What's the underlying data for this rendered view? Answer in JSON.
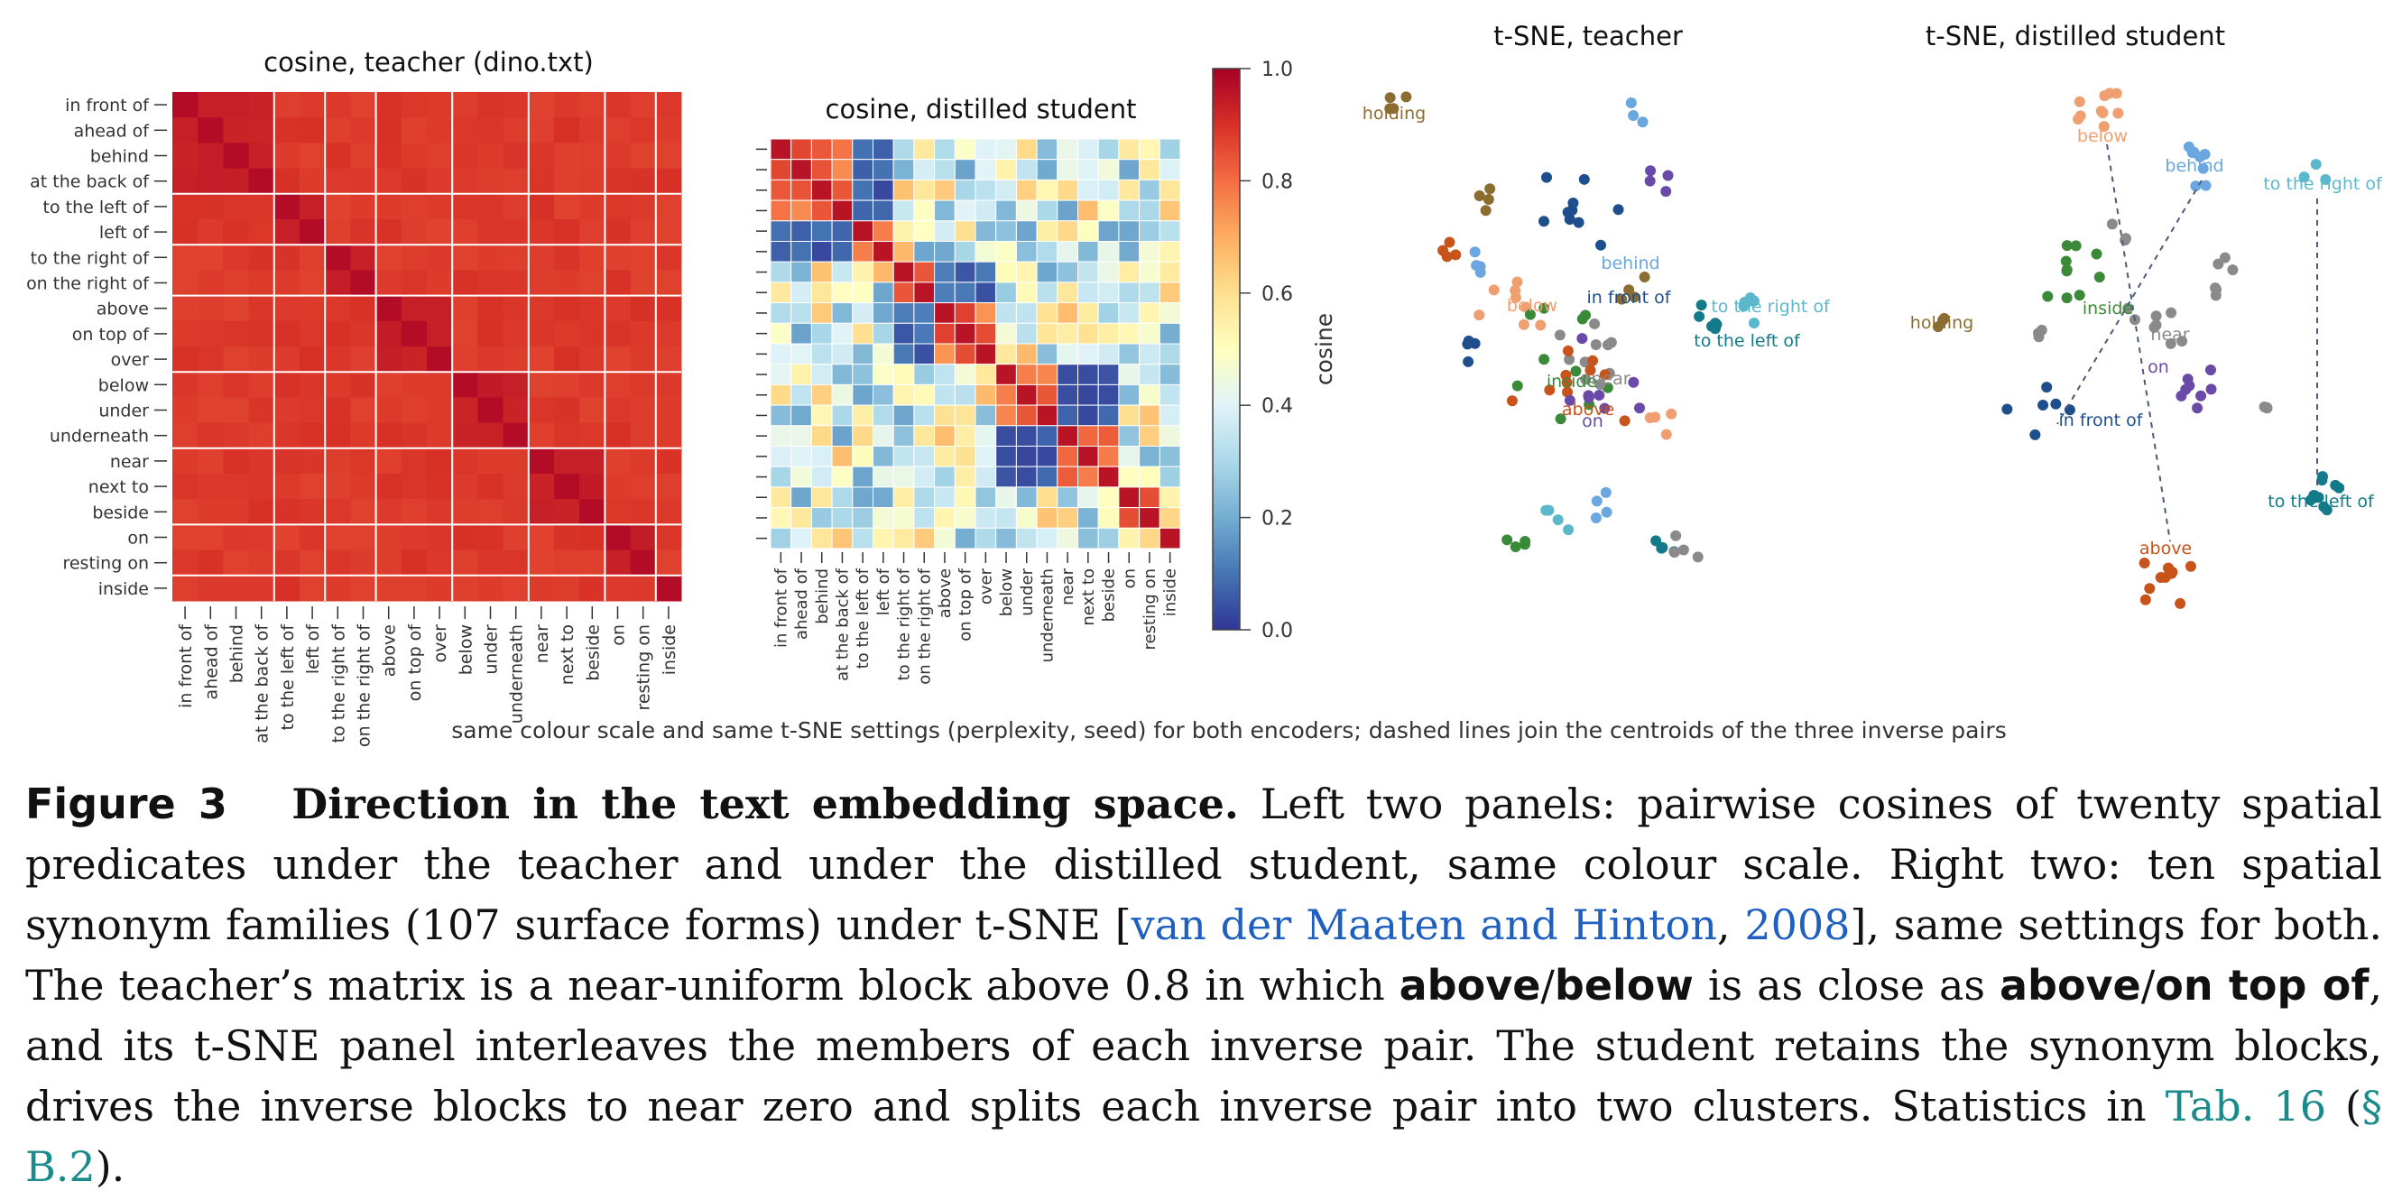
{
  "figure": {
    "footnote": "same colour scale and same t-SNE settings (perplexity, seed) for both encoders; dashed lines join the centroids of the three inverse pairs"
  },
  "chart_data": [
    {
      "type": "heatmap",
      "title": "cosine, teacher (dino.txt)",
      "labels": [
        "in front of",
        "ahead of",
        "behind",
        "at the back of",
        "to the left of",
        "left of",
        "to the right of",
        "on the right of",
        "above",
        "on top of",
        "over",
        "below",
        "under",
        "underneath",
        "near",
        "next to",
        "beside",
        "on",
        "resting on",
        "inside"
      ],
      "groups": [
        [
          0,
          1,
          2,
          3
        ],
        [
          4,
          5
        ],
        [
          6,
          7
        ],
        [
          8,
          9,
          10
        ],
        [
          11,
          12,
          13
        ],
        [
          14,
          15,
          16
        ],
        [
          17,
          18
        ],
        [
          19
        ]
      ],
      "matrix_summary": "near-uniform values above 0.8 (diagonal 1.0)",
      "ylim": [
        0,
        1
      ]
    },
    {
      "type": "heatmap",
      "title": "cosine, distilled student",
      "labels": [
        "in front of",
        "ahead of",
        "behind",
        "at the back of",
        "to the left of",
        "left of",
        "to the right of",
        "on the right of",
        "above",
        "on top of",
        "over",
        "below",
        "under",
        "underneath",
        "near",
        "next to",
        "beside",
        "on",
        "resting on",
        "inside"
      ],
      "colorbar": {
        "label": "cosine",
        "ticks": [
          "0.0",
          "0.2",
          "0.4",
          "0.6",
          "0.8",
          "1.0"
        ],
        "range": [
          0,
          1
        ]
      }
    },
    {
      "type": "scatter",
      "title": "t-SNE, teacher",
      "labels": [
        "holding",
        "behind",
        "in front of",
        "below",
        "to the right of",
        "to the left of",
        "inside",
        "near",
        "above",
        "on"
      ]
    },
    {
      "type": "scatter",
      "title": "t-SNE, distilled student",
      "labels": [
        "below",
        "behind",
        "to the right of",
        "holding",
        "inside",
        "near",
        "on",
        "in front of",
        "to the left of",
        "above"
      ]
    }
  ],
  "caption": {
    "fig_label": "Figure 3",
    "title": "Direction in the text embedding space.",
    "part1": " Left two panels: pairwise cosines of twenty spatial predicates under the teacher and under the distilled student, same colour scale. Right two: ten spatial synonym families (107 surface forms) under t-SNE [",
    "cite_author": "van der Maaten and Hinton",
    "cite_sep": ", ",
    "cite_year": "2008",
    "part2": "], same settings for both. The teacher’s matrix is a near-uniform block above 0.8 in which ",
    "term1": "above",
    "slash1": "/",
    "term2": "below",
    "part3": " is as close as ",
    "term3": "above",
    "slash2": "/",
    "term4": "on top of",
    "part4": ", and its t-SNE panel interleaves the members of each inverse pair. The student retains the synonym blocks, drives the inverse blocks to near zero and splits each inverse pair into two clusters. Statistics in ",
    "ref_tab": "Tab. 16",
    "part5": " (",
    "ref_sec": "§ B.2",
    "part6": ")."
  }
}
